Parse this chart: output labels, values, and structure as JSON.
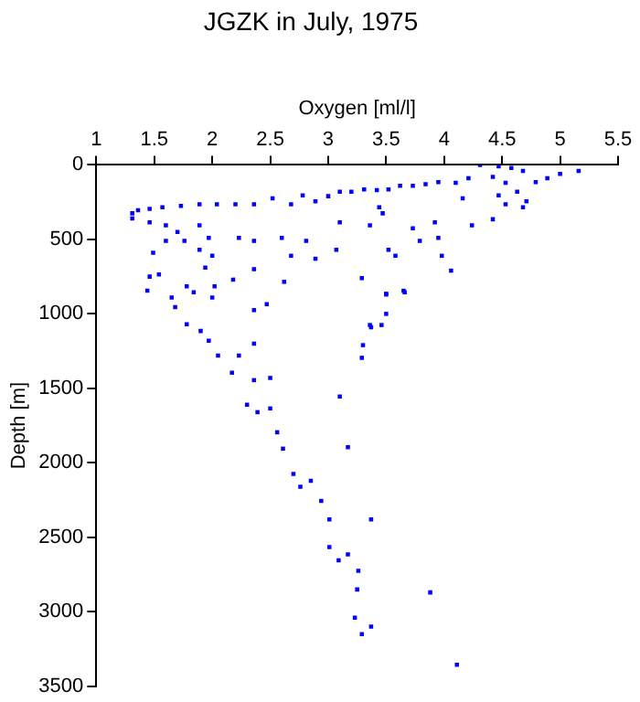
{
  "chart_data": {
    "type": "scatter",
    "title": "JGZK in July, 1975",
    "xlabel": "Oxygen [ml/l]",
    "ylabel": "Depth [m]",
    "xlim": [
      1,
      5.5
    ],
    "xticks": [
      1,
      1.5,
      2,
      2.5,
      3,
      3.5,
      4,
      4.5,
      5,
      5.5
    ],
    "ylim": [
      3500,
      0
    ],
    "yticks": [
      0,
      500,
      1000,
      1500,
      2000,
      2500,
      3000,
      3500
    ],
    "grid": false,
    "legend": false,
    "marker": "square",
    "series": [
      {
        "color": "#0000ff",
        "x": [
          5.16,
          5.0,
          4.89,
          4.79,
          4.68,
          4.58,
          4.47,
          4.42,
          4.53,
          4.63,
          4.71,
          4.68,
          4.47,
          4.31,
          4.21,
          4.1,
          3.95,
          3.84,
          3.73,
          3.62,
          3.52,
          3.42,
          3.31,
          3.2,
          3.1,
          3.0,
          2.89,
          2.78,
          2.68,
          2.52,
          2.36,
          2.2,
          2.04,
          1.89,
          1.73,
          1.57,
          1.46,
          1.36,
          1.31,
          1.31,
          1.46,
          1.6,
          1.6,
          1.7,
          1.76,
          1.89,
          1.89,
          1.97,
          2.0,
          1.94,
          1.49,
          1.46,
          1.44,
          1.54,
          1.65,
          1.78,
          1.84,
          2.02,
          2.0,
          2.18,
          2.23,
          2.36,
          2.36,
          2.47,
          2.36,
          2.6,
          2.68,
          2.62,
          2.89,
          2.81,
          3.07,
          3.1,
          3.29,
          3.36,
          3.5,
          3.5,
          3.52,
          3.58,
          3.65,
          3.73,
          3.79,
          3.92,
          3.95,
          3.98,
          4.06,
          4.16,
          4.24,
          4.42,
          4.53,
          3.47,
          3.44,
          3.36,
          1.68,
          1.78,
          1.9,
          1.97,
          2.05,
          2.17,
          2.23,
          2.36,
          2.36,
          2.5,
          2.3,
          2.39,
          2.5,
          2.56,
          2.61,
          2.7,
          2.76,
          2.85,
          2.94,
          3.1,
          3.17,
          3.29,
          3.3,
          3.37,
          3.46,
          3.66,
          3.5,
          3.01,
          3.37,
          3.01,
          3.17,
          3.09,
          3.26,
          3.25,
          3.88,
          3.23,
          3.37,
          3.29,
          4.11
        ],
        "values": [
          40,
          60,
          90,
          115,
          40,
          20,
          10,
          80,
          120,
          180,
          245,
          285,
          205,
          0,
          90,
          120,
          115,
          130,
          140,
          140,
          165,
          170,
          165,
          180,
          180,
          210,
          245,
          205,
          265,
          225,
          265,
          265,
          265,
          265,
          275,
          285,
          295,
          305,
          325,
          360,
          385,
          405,
          510,
          450,
          510,
          405,
          570,
          490,
          610,
          690,
          590,
          750,
          845,
          735,
          890,
          815,
          855,
          815,
          890,
          770,
          490,
          510,
          700,
          935,
          975,
          490,
          610,
          785,
          630,
          510,
          570,
          385,
          760,
          405,
          865,
          1000,
          570,
          610,
          845,
          425,
          510,
          385,
          490,
          610,
          710,
          225,
          405,
          365,
          265,
          325,
          285,
          1075,
          955,
          1070,
          1115,
          1180,
          1280,
          1395,
          1280,
          1200,
          1445,
          1430,
          1610,
          1660,
          1635,
          1795,
          1905,
          2075,
          2160,
          2120,
          2255,
          1555,
          1895,
          1295,
          1210,
          1090,
          1075,
          855,
          870,
          2380,
          2380,
          2565,
          2615,
          2655,
          2725,
          2850,
          2870,
          3040,
          3100,
          3150,
          3355
        ]
      }
    ]
  }
}
